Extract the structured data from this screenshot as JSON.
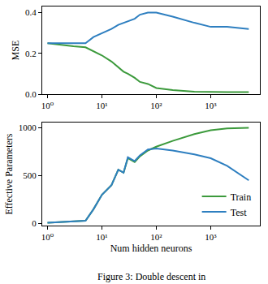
{
  "caption": "Figure 3: Double descent in",
  "chart_data": [
    {
      "type": "line",
      "ylabel": "MSE",
      "log": "x",
      "grid": false,
      "x": [
        1,
        2,
        3,
        5,
        7,
        10,
        15,
        20,
        25,
        30,
        40,
        50,
        70,
        100,
        200,
        500,
        1000,
        2000,
        5000
      ],
      "xlim": [
        0.8,
        8000
      ],
      "xticks": [
        {
          "value": 1,
          "label": "10⁰"
        },
        {
          "value": 10,
          "label": "10¹"
        },
        {
          "value": 100,
          "label": "10²"
        },
        {
          "value": 1000,
          "label": "10³"
        }
      ],
      "ylim": [
        0,
        0.43
      ],
      "yticks": [
        {
          "value": 0,
          "label": "0.0"
        },
        {
          "value": 0.2,
          "label": "0.2"
        },
        {
          "value": 0.4,
          "label": "0.4"
        }
      ],
      "series": [
        {
          "name": "Train",
          "color": "#3c9a3c",
          "values": [
            0.25,
            0.24,
            0.235,
            0.23,
            0.21,
            0.19,
            0.16,
            0.13,
            0.11,
            0.1,
            0.08,
            0.06,
            0.05,
            0.03,
            0.02,
            0.012,
            0.01,
            0.01,
            0.01
          ]
        },
        {
          "name": "Test",
          "color": "#2e7fc0",
          "values": [
            0.25,
            0.25,
            0.25,
            0.25,
            0.28,
            0.3,
            0.32,
            0.34,
            0.35,
            0.36,
            0.37,
            0.39,
            0.4,
            0.4,
            0.38,
            0.35,
            0.33,
            0.33,
            0.32
          ]
        }
      ]
    },
    {
      "type": "line",
      "xlabel": "Num hidden neurons",
      "ylabel": "Effective Parameters",
      "log": "x",
      "grid": false,
      "legend": "lower right",
      "x": [
        1,
        2,
        3,
        5,
        7,
        10,
        15,
        20,
        25,
        30,
        40,
        50,
        70,
        100,
        200,
        500,
        1000,
        2000,
        5000
      ],
      "xlim": [
        0.8,
        8000
      ],
      "xticks": [
        {
          "value": 1,
          "label": "10⁰"
        },
        {
          "value": 10,
          "label": "10¹"
        },
        {
          "value": 100,
          "label": "10²"
        },
        {
          "value": 1000,
          "label": "10³"
        }
      ],
      "ylim": [
        -20,
        1050
      ],
      "yticks": [
        0,
        500,
        1000
      ],
      "series": [
        {
          "name": "Train",
          "color": "#3c9a3c",
          "values": [
            10,
            20,
            25,
            30,
            150,
            300,
            400,
            560,
            530,
            680,
            640,
            700,
            760,
            800,
            860,
            930,
            970,
            990,
            995
          ]
        },
        {
          "name": "Test",
          "color": "#2e7fc0",
          "values": [
            10,
            20,
            25,
            30,
            150,
            300,
            400,
            560,
            530,
            690,
            650,
            710,
            770,
            780,
            760,
            720,
            680,
            600,
            450
          ]
        }
      ]
    }
  ]
}
